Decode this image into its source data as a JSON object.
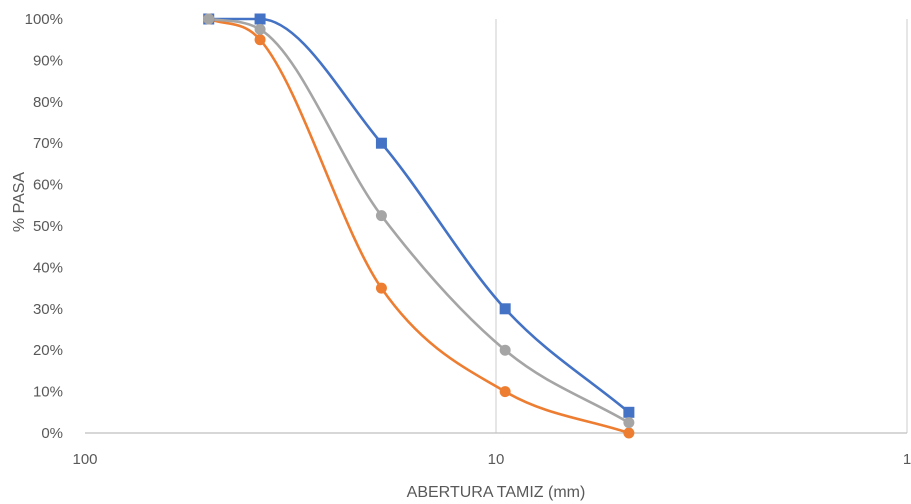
{
  "chart_data": {
    "type": "line",
    "title": "",
    "xlabel": "ABERTURA TAMIZ (mm)",
    "ylabel": "% PASA",
    "x_scale": "log",
    "x_reversed": true,
    "xlim": [
      100,
      1
    ],
    "ylim": [
      0,
      1
    ],
    "x_tick_labels": [
      "100",
      "10",
      "1"
    ],
    "y_tick_labels": [
      "0%",
      "10%",
      "20%",
      "30%",
      "40%",
      "50%",
      "60%",
      "70%",
      "80%",
      "90%",
      "100%"
    ],
    "grid": "vertical",
    "legend": "none",
    "series": [
      {
        "color": "#4472C4",
        "marker": "square",
        "x": [
          50,
          37.5,
          19,
          9.5,
          4.75
        ],
        "y": [
          1.0,
          1.0,
          0.7,
          0.3,
          0.05
        ]
      },
      {
        "color": "#A5A5A5",
        "marker": "circle",
        "x": [
          50,
          37.5,
          19,
          9.5,
          4.75
        ],
        "y": [
          1.0,
          0.975,
          0.525,
          0.2,
          0.025
        ]
      },
      {
        "color": "#ED7D31",
        "marker": "circle",
        "x": [
          50,
          37.5,
          19,
          9.5,
          4.75
        ],
        "y": [
          1.0,
          0.95,
          0.35,
          0.1,
          0.0
        ]
      }
    ]
  }
}
